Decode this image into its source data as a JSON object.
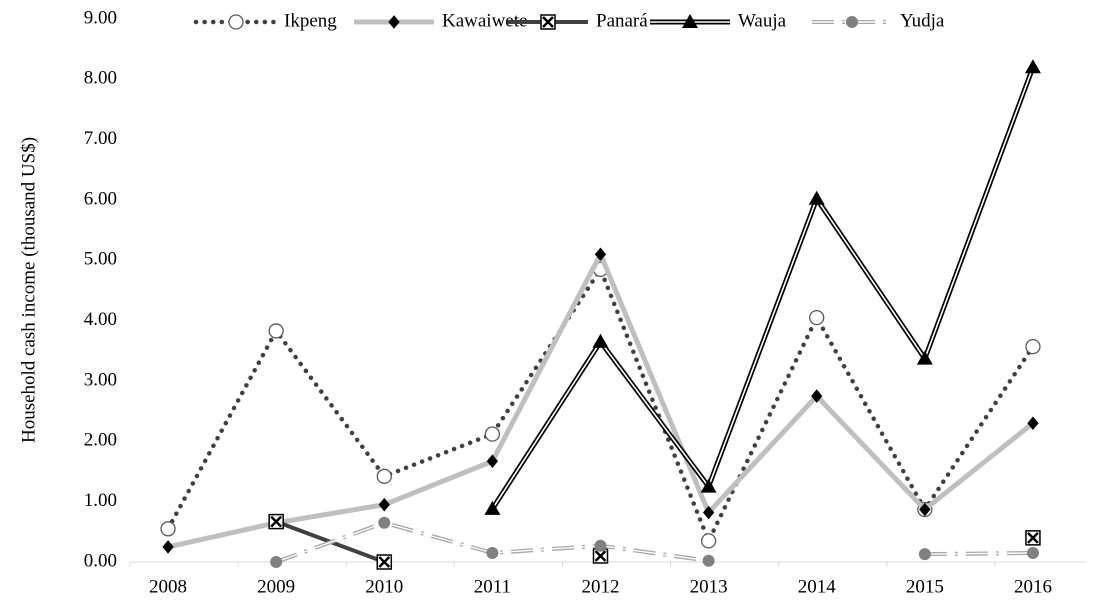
{
  "chart_data": {
    "type": "line",
    "y_label": "Household cash income (thousand US$)",
    "categories": [
      "2008",
      "2009",
      "2010",
      "2011",
      "2012",
      "2013",
      "2014",
      "2015",
      "2016"
    ],
    "series": [
      {
        "name": "Ikpeng",
        "color": "#404040",
        "line": "dotted",
        "marker": "circle-open",
        "values": [
          0.55,
          3.83,
          1.42,
          2.12,
          4.85,
          0.35,
          4.05,
          0.87,
          3.57
        ]
      },
      {
        "name": "Kawaiwete",
        "color": "#bfbfbf",
        "line": "solid",
        "marker": "diamond",
        "values": [
          0.25,
          0.65,
          0.95,
          1.67,
          5.1,
          0.82,
          2.75,
          0.87,
          2.3
        ]
      },
      {
        "name": "Panará",
        "color": "#404040",
        "line": "solid",
        "marker": "x-square",
        "values": [
          null,
          0.67,
          0.0,
          null,
          0.1,
          null,
          null,
          null,
          0.4
        ]
      },
      {
        "name": "Wauja",
        "color": "#000000",
        "line": "double",
        "marker": "triangle",
        "values": [
          null,
          null,
          null,
          0.88,
          3.65,
          1.25,
          6.02,
          3.37,
          8.2
        ]
      },
      {
        "name": "Yudja",
        "color": "#a6a6a6",
        "line": "dashdot-double",
        "marker": "circle",
        "values": [
          null,
          0.0,
          0.65,
          0.15,
          0.27,
          0.02,
          null,
          0.13,
          0.15
        ]
      }
    ],
    "ylim": [
      0,
      9
    ],
    "yticks": [
      {
        "value": 0,
        "label": "0.00"
      },
      {
        "value": 1,
        "label": "1.00"
      },
      {
        "value": 2,
        "label": "2.00"
      },
      {
        "value": 3,
        "label": "3.00"
      },
      {
        "value": 4,
        "label": "4.00"
      },
      {
        "value": 5,
        "label": "5.00"
      },
      {
        "value": 6,
        "label": "6.00"
      },
      {
        "value": 7,
        "label": "7.00"
      },
      {
        "value": 8,
        "label": "8.00"
      },
      {
        "value": 9,
        "label": "9.00"
      }
    ],
    "legend": "top",
    "grid": false
  }
}
